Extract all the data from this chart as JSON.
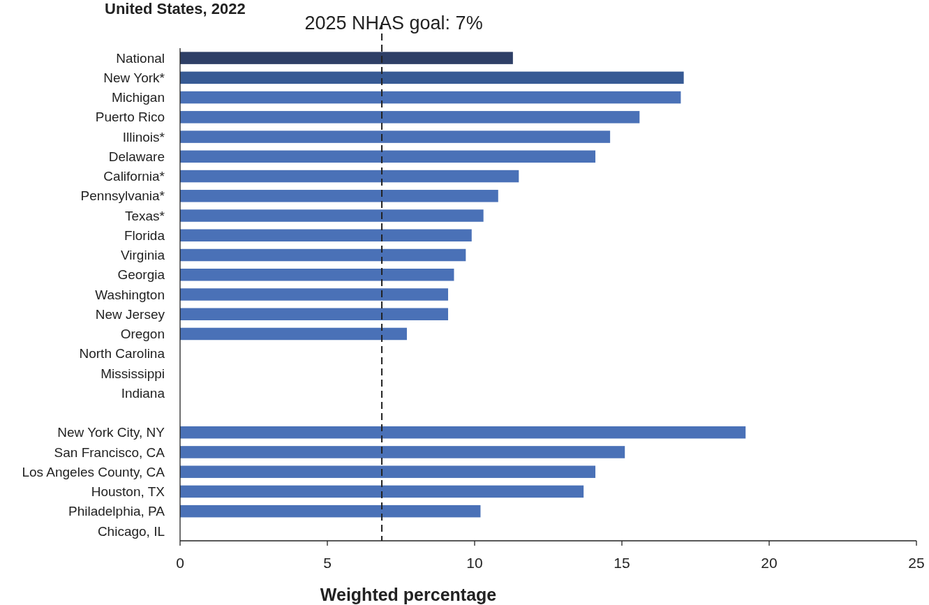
{
  "chart_data": {
    "type": "bar",
    "orientation": "horizontal",
    "title": "United States, 2022",
    "xlabel": "Weighted percentage",
    "categories": [
      "National",
      "New York*",
      "Michigan",
      "Puerto Rico",
      "Illinois*",
      "Delaware",
      "California*",
      "Pennsylvania*",
      "Texas*",
      "Florida",
      "Virginia",
      "Georgia",
      "Washington",
      "New Jersey",
      "Oregon",
      "North Carolina",
      "Mississippi",
      "Indiana",
      null,
      "New York City, NY",
      "San Francisco, CA",
      "Los Angeles County, CA",
      "Houston, TX",
      "Philadelphia, PA",
      "Chicago, IL"
    ],
    "values": [
      11.3,
      17.1,
      17.0,
      15.6,
      14.6,
      14.1,
      11.5,
      10.8,
      10.3,
      9.9,
      9.7,
      9.3,
      9.1,
      9.1,
      7.7,
      null,
      null,
      null,
      null,
      19.2,
      15.1,
      14.1,
      13.7,
      10.2,
      null
    ],
    "colors": [
      "#2e3f66",
      "#375a94",
      "#4a71b7",
      "#4a71b7",
      "#4a71b7",
      "#4a71b7",
      "#4a71b7",
      "#4a71b7",
      "#4a71b7",
      "#4a71b7",
      "#4a71b7",
      "#4a71b7",
      "#4a71b7",
      "#4a71b7",
      "#4a71b7",
      null,
      null,
      null,
      null,
      "#4a71b7",
      "#4a71b7",
      "#4a71b7",
      "#4a71b7",
      "#4a71b7",
      null
    ],
    "xlim": [
      0,
      25
    ],
    "xticks": [
      0,
      5,
      10,
      15,
      20,
      25
    ],
    "ref_lines": [
      {
        "axis": "x",
        "value": 6.85,
        "label": "2025 NHAS goal: 7%",
        "line_style": "dashed",
        "color": "#222222"
      }
    ],
    "grid": false
  }
}
